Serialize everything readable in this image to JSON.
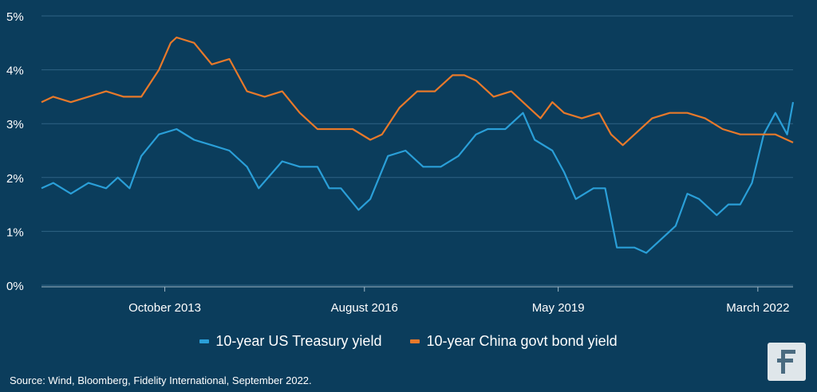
{
  "chart_data": {
    "type": "line",
    "title": "",
    "xlabel": "",
    "ylabel": "",
    "ylim": [
      0,
      5
    ],
    "y_ticks": [
      "0%",
      "1%",
      "2%",
      "3%",
      "4%",
      "5%"
    ],
    "x_ticks": [
      {
        "label": "October 2013",
        "date": "2013-10"
      },
      {
        "label": "August 2016",
        "date": "2016-08"
      },
      {
        "label": "May 2019",
        "date": "2019-05"
      },
      {
        "label": "March 2022",
        "date": "2022-03"
      }
    ],
    "x_range": [
      "2012-01",
      "2022-09"
    ],
    "grid": "horizontal",
    "legend_position": "bottom",
    "series": [
      {
        "name": "10-year US Treasury yield",
        "color": "#2a9fd8",
        "points": [
          [
            "2012-01",
            1.8
          ],
          [
            "2012-03",
            1.9
          ],
          [
            "2012-06",
            1.7
          ],
          [
            "2012-09",
            1.9
          ],
          [
            "2012-12",
            1.8
          ],
          [
            "2013-02",
            2.0
          ],
          [
            "2013-04",
            1.8
          ],
          [
            "2013-06",
            2.4
          ],
          [
            "2013-09",
            2.8
          ],
          [
            "2013-12",
            2.9
          ],
          [
            "2014-03",
            2.7
          ],
          [
            "2014-06",
            2.6
          ],
          [
            "2014-09",
            2.5
          ],
          [
            "2014-12",
            2.2
          ],
          [
            "2015-02",
            1.8
          ],
          [
            "2015-06",
            2.3
          ],
          [
            "2015-09",
            2.2
          ],
          [
            "2015-12",
            2.2
          ],
          [
            "2016-02",
            1.8
          ],
          [
            "2016-04",
            1.8
          ],
          [
            "2016-07",
            1.4
          ],
          [
            "2016-09",
            1.6
          ],
          [
            "2016-12",
            2.4
          ],
          [
            "2017-03",
            2.5
          ],
          [
            "2017-06",
            2.2
          ],
          [
            "2017-09",
            2.2
          ],
          [
            "2017-12",
            2.4
          ],
          [
            "2018-03",
            2.8
          ],
          [
            "2018-05",
            2.9
          ],
          [
            "2018-08",
            2.9
          ],
          [
            "2018-11",
            3.2
          ],
          [
            "2019-01",
            2.7
          ],
          [
            "2019-04",
            2.5
          ],
          [
            "2019-06",
            2.1
          ],
          [
            "2019-08",
            1.6
          ],
          [
            "2019-11",
            1.8
          ],
          [
            "2020-01",
            1.8
          ],
          [
            "2020-03",
            0.7
          ],
          [
            "2020-06",
            0.7
          ],
          [
            "2020-08",
            0.6
          ],
          [
            "2020-10",
            0.8
          ],
          [
            "2021-01",
            1.1
          ],
          [
            "2021-03",
            1.7
          ],
          [
            "2021-05",
            1.6
          ],
          [
            "2021-08",
            1.3
          ],
          [
            "2021-10",
            1.5
          ],
          [
            "2021-12",
            1.5
          ],
          [
            "2022-02",
            1.9
          ],
          [
            "2022-04",
            2.8
          ],
          [
            "2022-06",
            3.2
          ],
          [
            "2022-08",
            2.8
          ],
          [
            "2022-09",
            3.4
          ]
        ]
      },
      {
        "name": "10-year China govt bond yield",
        "color": "#e8792a",
        "points": [
          [
            "2012-01",
            3.4
          ],
          [
            "2012-03",
            3.5
          ],
          [
            "2012-06",
            3.4
          ],
          [
            "2012-09",
            3.5
          ],
          [
            "2012-12",
            3.6
          ],
          [
            "2013-03",
            3.5
          ],
          [
            "2013-06",
            3.5
          ],
          [
            "2013-09",
            4.0
          ],
          [
            "2013-11",
            4.5
          ],
          [
            "2013-12",
            4.6
          ],
          [
            "2014-03",
            4.5
          ],
          [
            "2014-06",
            4.1
          ],
          [
            "2014-09",
            4.2
          ],
          [
            "2014-12",
            3.6
          ],
          [
            "2015-03",
            3.5
          ],
          [
            "2015-06",
            3.6
          ],
          [
            "2015-09",
            3.2
          ],
          [
            "2015-12",
            2.9
          ],
          [
            "2016-03",
            2.9
          ],
          [
            "2016-06",
            2.9
          ],
          [
            "2016-09",
            2.7
          ],
          [
            "2016-11",
            2.8
          ],
          [
            "2017-02",
            3.3
          ],
          [
            "2017-05",
            3.6
          ],
          [
            "2017-08",
            3.6
          ],
          [
            "2017-11",
            3.9
          ],
          [
            "2018-01",
            3.9
          ],
          [
            "2018-03",
            3.8
          ],
          [
            "2018-06",
            3.5
          ],
          [
            "2018-09",
            3.6
          ],
          [
            "2018-12",
            3.3
          ],
          [
            "2019-02",
            3.1
          ],
          [
            "2019-04",
            3.4
          ],
          [
            "2019-06",
            3.2
          ],
          [
            "2019-09",
            3.1
          ],
          [
            "2019-12",
            3.2
          ],
          [
            "2020-02",
            2.8
          ],
          [
            "2020-04",
            2.6
          ],
          [
            "2020-06",
            2.8
          ],
          [
            "2020-09",
            3.1
          ],
          [
            "2020-12",
            3.2
          ],
          [
            "2021-03",
            3.2
          ],
          [
            "2021-06",
            3.1
          ],
          [
            "2021-09",
            2.9
          ],
          [
            "2021-12",
            2.8
          ],
          [
            "2022-03",
            2.8
          ],
          [
            "2022-06",
            2.8
          ],
          [
            "2022-08",
            2.7
          ],
          [
            "2022-09",
            2.65
          ]
        ]
      }
    ]
  },
  "source_text": "Source: Wind, Bloomberg, Fidelity International, September 2022.",
  "logo": {
    "icon": "fidelity-logo",
    "color": "#4a6b80",
    "glyph": "F"
  }
}
